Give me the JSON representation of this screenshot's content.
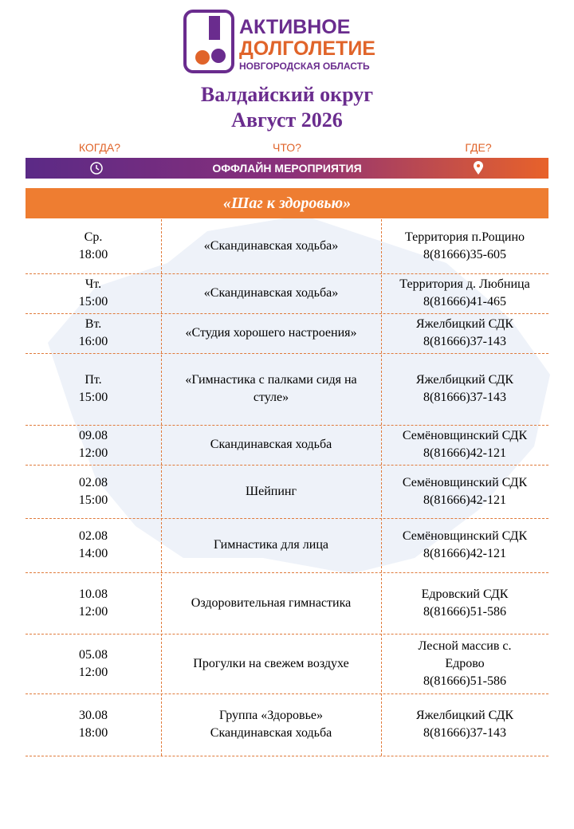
{
  "logo": {
    "line1": "АКТИВНОЕ",
    "line2": "ДОЛГОЛЕТИЕ",
    "line3": "НОВГОРОДСКАЯ ОБЛАСТЬ"
  },
  "header": {
    "title": "Валдайский округ",
    "subtitle": "Август 2026"
  },
  "columns": {
    "when": "КОГДА?",
    "what": "ЧТО?",
    "where": "ГДЕ?"
  },
  "banner": "ОФФЛАЙН МЕРОПРИЯТИЯ",
  "section": "«Шаг к здоровью»",
  "table": {
    "rows": [
      [
        [
          "Ср.",
          "18:00"
        ],
        [
          "«Скандинавская ходьба»"
        ],
        [
          "Территория п.Рощино",
          "8(81666)35-605"
        ]
      ],
      [
        [
          "Чт.",
          "15:00"
        ],
        [
          "«Скандинавская ходьба»"
        ],
        [
          "Территория д. Любница",
          "8(81666)41-465"
        ]
      ],
      [
        [
          "Вт.",
          "16:00"
        ],
        [
          "«Студия хорошего настроения»"
        ],
        [
          "Яжелбицкий СДК",
          "8(81666)37-143"
        ]
      ],
      [
        [
          "Пт.",
          "15:00"
        ],
        [
          "«Гимнастика с палками сидя на",
          "стуле»"
        ],
        [
          "Яжелбицкий СДК",
          "8(81666)37-143"
        ]
      ],
      [
        [
          "09.08",
          "12:00"
        ],
        [
          "Скандинавская ходьба"
        ],
        [
          "Семёновщинский СДК",
          "8(81666)42-121"
        ]
      ],
      [
        [
          "02.08",
          "15:00"
        ],
        [
          "Шейпинг"
        ],
        [
          "Семёновщинский СДК",
          "8(81666)42-121"
        ]
      ],
      [
        [
          "02.08",
          "14:00"
        ],
        [
          "Гимнастика для лица"
        ],
        [
          "Семёновщинский СДК",
          "8(81666)42-121"
        ]
      ],
      [
        [
          "10.08",
          "12:00"
        ],
        [
          "Оздоровительная гимнастика"
        ],
        [
          "Едровский СДК",
          "8(81666)51-586"
        ]
      ],
      [
        [
          "05.08",
          "12:00"
        ],
        [
          "Прогулки на свежем воздухе"
        ],
        [
          "Лесной массив с.",
          "Едрово",
          "8(81666)51-586"
        ]
      ],
      [
        [
          "30.08",
          "18:00"
        ],
        [
          "Группа «Здоровье»",
          "Скандинавская ходьба"
        ],
        [
          "Яжелбицкий СДК",
          "8(81666)37-143"
        ]
      ]
    ]
  }
}
